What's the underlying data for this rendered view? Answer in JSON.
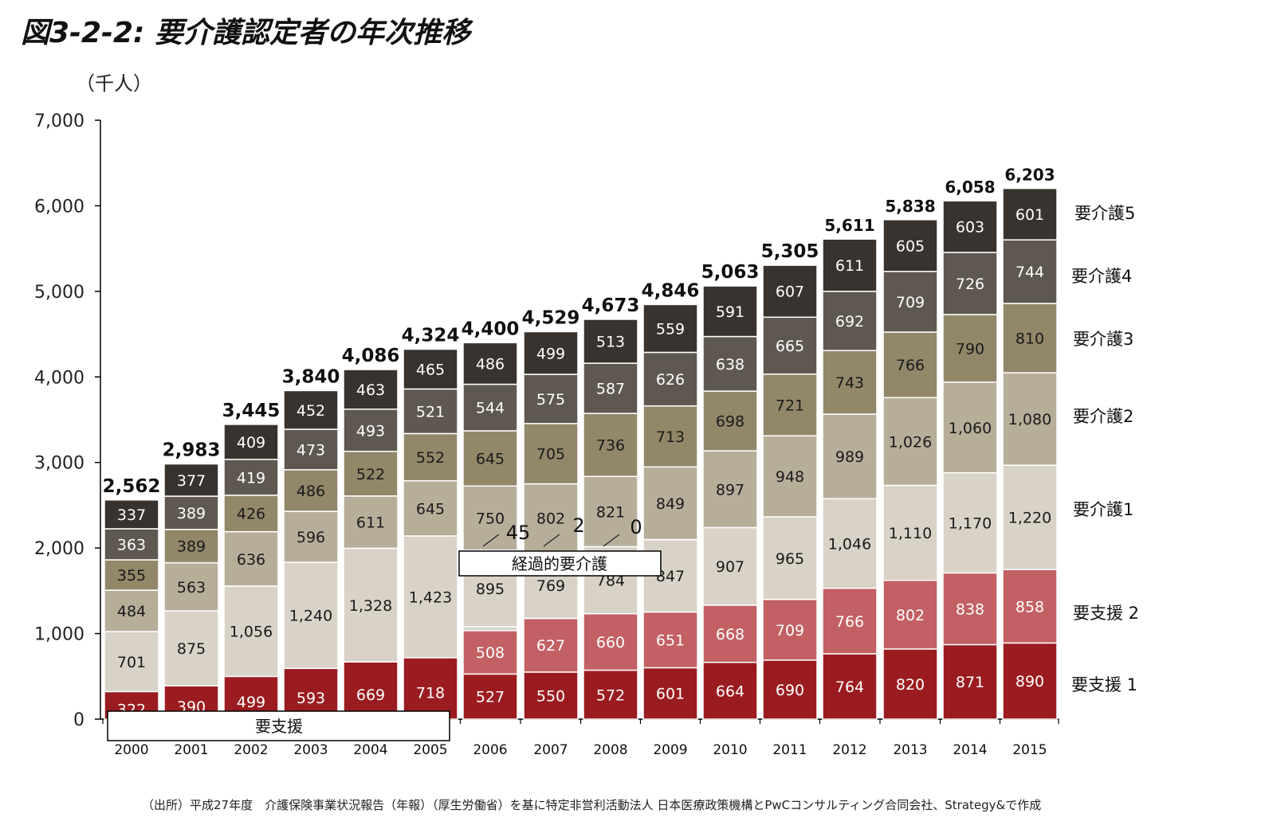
{
  "title": "図3-2-2: 要介護認定者の年次推移",
  "source": "（出所）平成27年度　介護保険事業状況報告（年報）（厚生労働省）を基に特定非営利活動法人 日本医療政策機構とPwCコンサルティング合同会社、Strategy&で作成",
  "colors": {
    "shien1": "#9b1c20",
    "shien2": "#c26063",
    "kaigo1": "#d8d3c6",
    "kaigo2": "#b7ae9a",
    "kaigo3": "#928769",
    "kaigo4": "#5e5850",
    "kaigo5": "#38332e"
  },
  "chart_data": {
    "type": "bar",
    "stacked": true,
    "unit_label": "（千人）",
    "ylim": [
      0,
      7000
    ],
    "yticks": [
      "0",
      "1,000",
      "2,000",
      "3,000",
      "4,000",
      "5,000",
      "6,000",
      "7,000"
    ],
    "categories": [
      "2000",
      "2001",
      "2002",
      "2003",
      "2004",
      "2005",
      "2006",
      "2007",
      "2008",
      "2009",
      "2010",
      "2011",
      "2012",
      "2013",
      "2014",
      "2015"
    ],
    "totals": [
      "2,562",
      "2,983",
      "3,445",
      "3,840",
      "4,086",
      "4,324",
      "4,400",
      "4,529",
      "4,673",
      "4,846",
      "5,063",
      "5,305",
      "5,611",
      "5,838",
      "6,058",
      "6,203"
    ],
    "series_2000_2005": [
      {
        "name": "要支援",
        "color_key": "shien1",
        "values": [
          322,
          390,
          499,
          593,
          669,
          718
        ]
      },
      {
        "name": "要介護1",
        "color_key": "kaigo1",
        "values": [
          701,
          875,
          1056,
          1240,
          1328,
          1423
        ]
      },
      {
        "name": "要介護2",
        "color_key": "kaigo2",
        "values": [
          484,
          563,
          636,
          596,
          611,
          645
        ]
      },
      {
        "name": "要介護3",
        "color_key": "kaigo3",
        "values": [
          355,
          389,
          426,
          486,
          522,
          552
        ]
      },
      {
        "name": "要介護4",
        "color_key": "kaigo4",
        "values": [
          363,
          389,
          419,
          473,
          493,
          521
        ]
      },
      {
        "name": "要介護5",
        "color_key": "kaigo5",
        "values": [
          337,
          377,
          409,
          452,
          463,
          465
        ]
      }
    ],
    "series_2006_2015": [
      {
        "name": "要支援 1",
        "color_key": "shien1",
        "values": [
          527,
          550,
          572,
          601,
          664,
          690,
          764,
          820,
          871,
          890
        ]
      },
      {
        "name": "要支援 2",
        "color_key": "shien2",
        "values": [
          508,
          627,
          660,
          651,
          668,
          709,
          766,
          802,
          838,
          858
        ]
      },
      {
        "name": "経過的要介護",
        "color_key": "kaigo1",
        "values": [
          45,
          2,
          0,
          0,
          0,
          0,
          0,
          0,
          0,
          0
        ]
      },
      {
        "name": "要介護1",
        "color_key": "kaigo1",
        "values": [
          895,
          769,
          784,
          847,
          907,
          965,
          1046,
          1110,
          1170,
          1220
        ]
      },
      {
        "name": "要介護2",
        "color_key": "kaigo2",
        "values": [
          750,
          802,
          821,
          849,
          897,
          948,
          989,
          1026,
          1060,
          1080
        ]
      },
      {
        "name": "要介護3",
        "color_key": "kaigo3",
        "values": [
          645,
          705,
          736,
          713,
          698,
          721,
          743,
          766,
          790,
          810
        ]
      },
      {
        "name": "要介護4",
        "color_key": "kaigo4",
        "values": [
          544,
          575,
          587,
          626,
          638,
          665,
          692,
          709,
          726,
          744
        ]
      },
      {
        "name": "要介護5",
        "color_key": "kaigo5",
        "values": [
          486,
          499,
          513,
          559,
          591,
          607,
          611,
          605,
          603,
          601
        ]
      }
    ],
    "segment_labels_2000_2005": [
      [
        "322",
        "701",
        "484",
        "355",
        "363",
        "337"
      ],
      [
        "390",
        "875",
        "563",
        "389",
        "389",
        "377"
      ],
      [
        "499",
        "1,056",
        "636",
        "426",
        "419",
        "409"
      ],
      [
        "593",
        "1,240",
        "596",
        "486",
        "473",
        "452"
      ],
      [
        "669",
        "1,328",
        "611",
        "522",
        "493",
        "463"
      ],
      [
        "718",
        "1,423",
        "645",
        "552",
        "521",
        "465"
      ]
    ],
    "segment_labels_2006_2015": [
      [
        "527",
        "508",
        "895",
        "750",
        "645",
        "544",
        "486"
      ],
      [
        "550",
        "627",
        "769",
        "802",
        "705",
        "575",
        "499"
      ],
      [
        "572",
        "660",
        "784",
        "821",
        "736",
        "587",
        "513"
      ],
      [
        "601",
        "651",
        "847",
        "849",
        "713",
        "626",
        "559"
      ],
      [
        "664",
        "668",
        "907",
        "897",
        "698",
        "638",
        "591"
      ],
      [
        "690",
        "709",
        "965",
        "948",
        "721",
        "665",
        "607"
      ],
      [
        "764",
        "766",
        "1,046",
        "989",
        "743",
        "692",
        "611"
      ],
      [
        "820",
        "802",
        "1,110",
        "1,026",
        "766",
        "709",
        "605"
      ],
      [
        "871",
        "838",
        "1,170",
        "1,060",
        "790",
        "726",
        "603"
      ],
      [
        "890",
        "858",
        "1,220",
        "1,080",
        "810",
        "744",
        "601"
      ]
    ],
    "transitional_labels": [
      "45",
      "2",
      "0"
    ],
    "legend": [
      "要介護5",
      "要介護4",
      "要介護3",
      "要介護2",
      "要介護1",
      "要支援 2",
      "要支援 1"
    ],
    "annotations": {
      "transitional_box": "経過的要介護",
      "support_box": "要支援"
    }
  }
}
